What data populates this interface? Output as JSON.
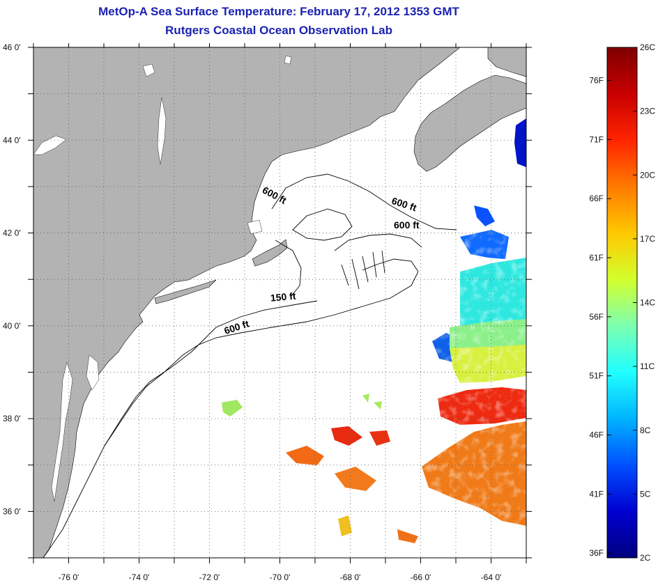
{
  "title": "MetOp-A Sea Surface Temperature:  February 17, 2012 1353 GMT",
  "subtitle": "Rutgers Coastal Ocean Observation Lab",
  "colors": {
    "title": "#1a22b0",
    "land": "#b3b3b3",
    "ocean": "#ffffff",
    "grid": "#555555"
  },
  "map": {
    "lon_range": [
      -77,
      -63
    ],
    "lat_range": [
      35,
      46
    ]
  },
  "lon_ticks": [
    {
      "value": -76,
      "label": "-76 0'"
    },
    {
      "value": -74,
      "label": "-74 0'"
    },
    {
      "value": -72,
      "label": "-72 0'"
    },
    {
      "value": -70,
      "label": "-70 0'"
    },
    {
      "value": -68,
      "label": "-68 0'"
    },
    {
      "value": -66,
      "label": "-66 0'"
    },
    {
      "value": -64,
      "label": "-64 0'"
    }
  ],
  "lat_ticks": [
    {
      "value": 46,
      "label": "46 0'"
    },
    {
      "value": 44,
      "label": "44 0'"
    },
    {
      "value": 42,
      "label": "42 0'"
    },
    {
      "value": 40,
      "label": "40 0'"
    },
    {
      "value": 38,
      "label": "38 0'"
    },
    {
      "value": 36,
      "label": "36 0'"
    }
  ],
  "contour_labels": [
    {
      "text": "600 ft",
      "lon": -70.2,
      "lat": 42.75,
      "angle": 28
    },
    {
      "text": "600 ft",
      "lon": -66.5,
      "lat": 42.55,
      "angle": 18
    },
    {
      "text": "600 ft",
      "lon": -66.4,
      "lat": 42.1,
      "angle": 0
    },
    {
      "text": "150 ft",
      "lon": -69.9,
      "lat": 40.55,
      "angle": -5
    },
    {
      "text": "600 ft",
      "lon": -71.2,
      "lat": 39.9,
      "angle": -18
    }
  ],
  "colorbar": {
    "range_c": [
      2,
      26
    ],
    "celsius_labels": [
      "26C",
      "23C",
      "20C",
      "17C",
      "14C",
      "11C",
      "8C",
      "5C",
      "2C"
    ],
    "celsius_values": [
      26,
      23,
      20,
      17,
      14,
      11,
      8,
      5,
      2
    ],
    "fahrenheit_labels": [
      "76F",
      "71F",
      "66F",
      "61F",
      "56F",
      "51F",
      "46F",
      "41F",
      "36F"
    ],
    "fahrenheit_values": [
      76,
      71,
      66,
      61,
      56,
      51,
      46,
      41,
      36
    ],
    "stops": [
      "#7f0000",
      "#c80000",
      "#ff2400",
      "#ff7a00",
      "#ffc800",
      "#d2ff2c",
      "#7dffb1",
      "#20ffff",
      "#00b4ff",
      "#0050ff",
      "#0000d0",
      "#00007f"
    ]
  }
}
